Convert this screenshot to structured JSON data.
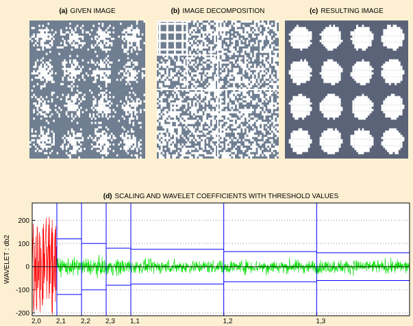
{
  "panels": [
    {
      "tag": "(a)",
      "title": "GIVEN IMAGE"
    },
    {
      "tag": "(b)",
      "title": "IMAGE DECOMPOSITION"
    },
    {
      "tag": "(c)",
      "title": "RESULTING IMAGE"
    }
  ],
  "chart_data": {
    "type": "line",
    "tag": "(d)",
    "title": "SCALING AND WAVELET COEFFICIENTS WITH THRESHOLD VALUES",
    "y_label": "WAVELET : db2",
    "xlim": [
      0,
      4423
    ],
    "xticks": [
      {
        "value": 0,
        "label": "2,0"
      },
      {
        "value": 289,
        "label": "2,1"
      },
      {
        "value": 578,
        "label": "2,2"
      },
      {
        "value": 867,
        "label": "2,3"
      },
      {
        "value": 1156,
        "label": "1,1"
      },
      {
        "value": 2245,
        "label": "1,2"
      },
      {
        "value": 3334,
        "label": "1,3"
      }
    ],
    "ylim": [
      -212,
      275
    ],
    "yticks": [
      -200,
      -100,
      0,
      100,
      200
    ],
    "thresholds": [
      null,
      120,
      100,
      80,
      75,
      65,
      60
    ],
    "scaling_color": "#ff0000",
    "wavelet_color": "#00e000",
    "threshold_color": "#0000ff",
    "grid": true
  }
}
